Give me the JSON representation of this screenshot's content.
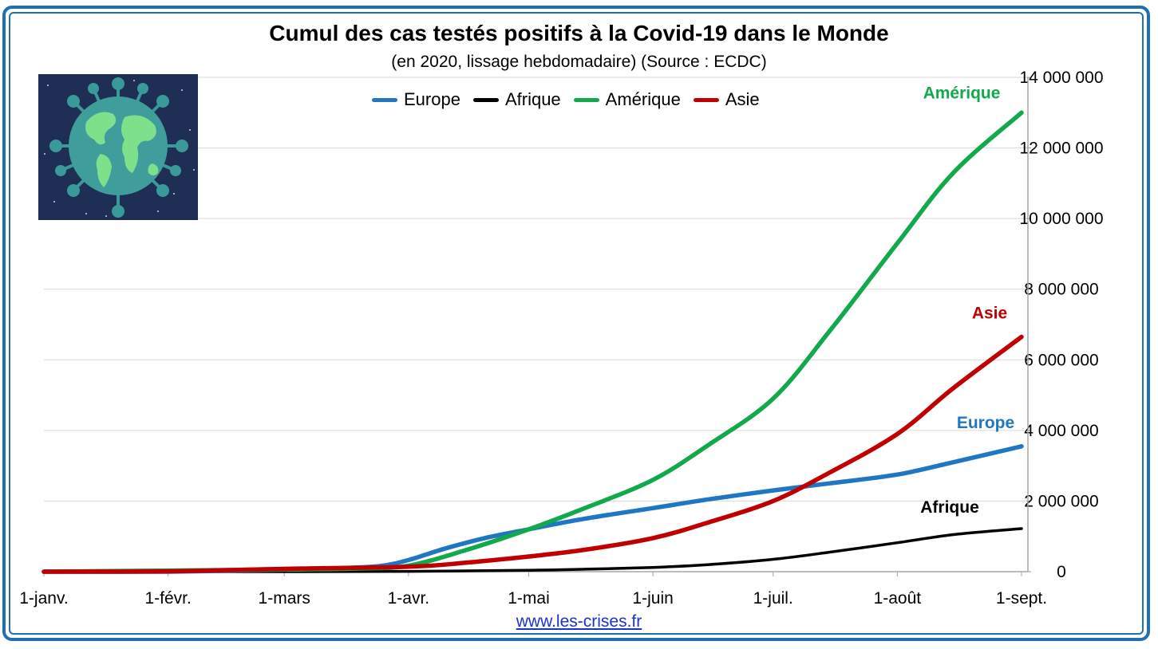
{
  "chart_data": {
    "type": "line",
    "title": "Cumul des cas testés positifs à la Covid-19 dans le Monde",
    "subtitle": "(en 2020, lissage hebdomadaire) (Source : ECDC)",
    "x_ticks": [
      "1-janv.",
      "1-févr.",
      "1-mars",
      "1-avr.",
      "1-mai",
      "1-juin",
      "1-juil.",
      "1-août",
      "1-sept."
    ],
    "x_tick_dates": [
      "2020-01-01",
      "2020-02-01",
      "2020-03-01",
      "2020-04-01",
      "2020-05-01",
      "2020-06-01",
      "2020-07-01",
      "2020-08-01",
      "2020-09-01"
    ],
    "y_ticks": [
      "0",
      "2 000 000",
      "4 000 000",
      "6 000 000",
      "8 000 000",
      "10 000 000",
      "12 000 000",
      "14 000 000"
    ],
    "ylim": [
      0,
      14000000
    ],
    "y_axis_side": "right",
    "grid": "horizontal",
    "legend_position": "top",
    "series": [
      {
        "name": "Europe",
        "end_label": "Europe",
        "color": "#1f77c4",
        "x": [
          "2020-01-01",
          "2020-02-01",
          "2020-03-01",
          "2020-03-15",
          "2020-03-25",
          "2020-04-01",
          "2020-04-10",
          "2020-04-20",
          "2020-05-01",
          "2020-05-15",
          "2020-06-01",
          "2020-06-15",
          "2020-07-01",
          "2020-07-15",
          "2020-08-01",
          "2020-08-15",
          "2020-09-01"
        ],
        "values": [
          0,
          500,
          60000,
          100000,
          160000,
          330000,
          650000,
          950000,
          1200000,
          1500000,
          1800000,
          2050000,
          2300000,
          2500000,
          2750000,
          3100000,
          3550000
        ]
      },
      {
        "name": "Afrique",
        "end_label": "Afrique",
        "color": "#000000",
        "x": [
          "2020-01-01",
          "2020-03-01",
          "2020-04-01",
          "2020-05-01",
          "2020-05-15",
          "2020-06-01",
          "2020-06-15",
          "2020-07-01",
          "2020-07-15",
          "2020-08-01",
          "2020-08-15",
          "2020-09-01"
        ],
        "values": [
          0,
          500,
          8000,
          40000,
          70000,
          120000,
          200000,
          350000,
          550000,
          820000,
          1050000,
          1220000
        ]
      },
      {
        "name": "Amérique",
        "end_label": "Amérique",
        "color": "#12a84c",
        "x": [
          "2020-01-01",
          "2020-03-01",
          "2020-03-20",
          "2020-04-01",
          "2020-04-15",
          "2020-05-01",
          "2020-05-15",
          "2020-06-01",
          "2020-06-15",
          "2020-07-01",
          "2020-07-15",
          "2020-08-01",
          "2020-08-15",
          "2020-09-01"
        ],
        "values": [
          0,
          60000,
          90000,
          170000,
          600000,
          1200000,
          1800000,
          2600000,
          3600000,
          4900000,
          6800000,
          9300000,
          11300000,
          13000000
        ]
      },
      {
        "name": "Asie",
        "end_label": "Asie",
        "color": "#c00000",
        "x": [
          "2020-01-01",
          "2020-02-01",
          "2020-03-01",
          "2020-04-01",
          "2020-04-15",
          "2020-05-01",
          "2020-05-15",
          "2020-06-01",
          "2020-06-15",
          "2020-07-01",
          "2020-07-15",
          "2020-08-01",
          "2020-08-15",
          "2020-09-01"
        ],
        "values": [
          0,
          10000,
          80000,
          140000,
          250000,
          430000,
          620000,
          950000,
          1400000,
          2000000,
          2800000,
          3900000,
          5200000,
          6650000
        ]
      }
    ]
  },
  "footer": {
    "source_link": "www.les-crises.fr"
  },
  "image": {
    "icon": "globe-virus-icon"
  }
}
